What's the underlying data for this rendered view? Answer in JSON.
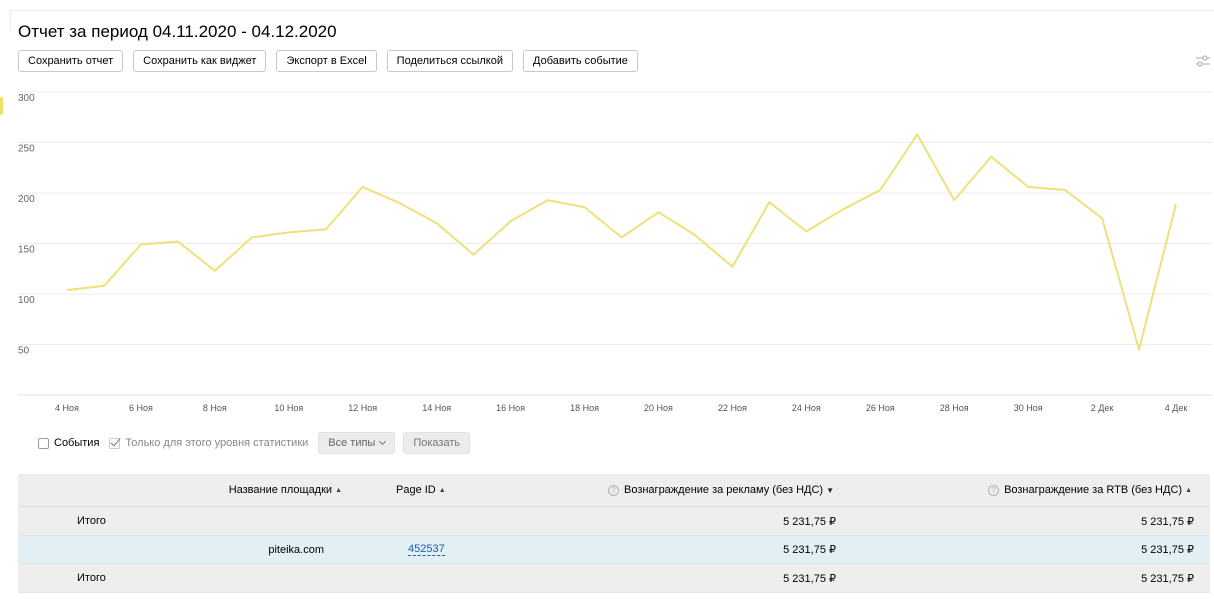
{
  "report": {
    "title": "Отчет за период 04.11.2020 - 04.12.2020"
  },
  "toolbar": {
    "buttons": [
      "Сохранить отчет",
      "Сохранить как виджет",
      "Экспорт в Excel",
      "Поделиться ссылкой",
      "Добавить событие"
    ],
    "settings_icon": "sliders-icon"
  },
  "chart_data": {
    "type": "line",
    "ylim": [
      0,
      300
    ],
    "yticks": [
      50,
      100,
      150,
      200,
      250,
      300
    ],
    "grid": true,
    "x_tick_labels": [
      "4 Ноя",
      "6 Ноя",
      "8 Ноя",
      "10 Ноя",
      "12 Ноя",
      "14 Ноя",
      "16 Ноя",
      "18 Ноя",
      "20 Ноя",
      "22 Ноя",
      "24 Ноя",
      "26 Ноя",
      "28 Ноя",
      "30 Ноя",
      "2 Дек",
      "4 Дек"
    ],
    "x": [
      "2020-11-04",
      "2020-11-05",
      "2020-11-06",
      "2020-11-07",
      "2020-11-08",
      "2020-11-09",
      "2020-11-10",
      "2020-11-11",
      "2020-11-12",
      "2020-11-13",
      "2020-11-14",
      "2020-11-15",
      "2020-11-16",
      "2020-11-17",
      "2020-11-18",
      "2020-11-19",
      "2020-11-20",
      "2020-11-21",
      "2020-11-22",
      "2020-11-23",
      "2020-11-24",
      "2020-11-25",
      "2020-11-26",
      "2020-11-27",
      "2020-11-28",
      "2020-11-29",
      "2020-11-30",
      "2020-12-01",
      "2020-12-02",
      "2020-12-03",
      "2020-12-04"
    ],
    "series": [
      {
        "values": [
          104,
          108,
          149,
          152,
          123,
          156,
          161,
          164,
          206,
          190,
          170,
          139,
          172,
          193,
          186,
          156,
          181,
          158,
          127,
          191,
          162,
          184,
          203,
          258,
          193,
          236,
          206,
          203,
          175,
          45,
          189
        ],
        "color": "#f0e07a"
      }
    ]
  },
  "controls": {
    "events_label": "События",
    "level_only_label": "Только для этого уровня статистики",
    "types_select": "Все типы",
    "show_button": "Показать"
  },
  "table": {
    "headers": {
      "name": "Название площадки",
      "page_id": "Page ID",
      "reward": "Вознаграждение за рекламу (без НДС)",
      "rtb": "Вознаграждение за RTB (без НДС)"
    },
    "total_label": "Итого",
    "total_row": {
      "reward": "5 231,75 ₽",
      "rtb": "5 231,75 ₽"
    },
    "rows": [
      {
        "name": "piteika.com",
        "page_id": "452537",
        "reward": "5 231,75 ₽",
        "rtb": "5 231,75 ₽"
      }
    ],
    "footer_row": {
      "reward": "5 231,75 ₽",
      "rtb": "5 231,75 ₽"
    }
  }
}
